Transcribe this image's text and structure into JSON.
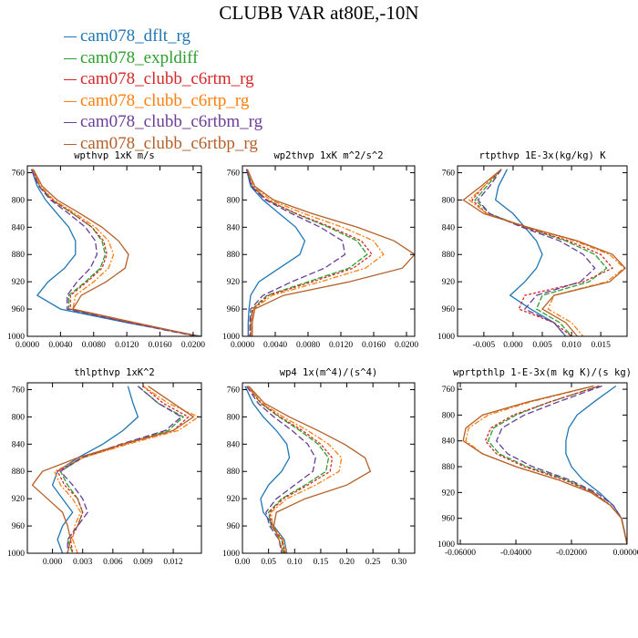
{
  "figure_title": "CLUBB VAR at80E,-10N",
  "legend": [
    {
      "label": "cam078_dflt_rg",
      "color": "#1f77b4"
    },
    {
      "label": "cam078_expldiff",
      "color": "#2ca02c"
    },
    {
      "label": "cam078_clubb_c6rtm_rg",
      "color": "#d62728"
    },
    {
      "label": "cam078_clubb_c6rtp_rg",
      "color": "#ff7f0e"
    },
    {
      "label": "cam078_clubb_c6rtbm_rg",
      "color": "#6a3d9a"
    },
    {
      "label": "cam078_clubb_c6rtbp_rg",
      "color": "#b5602a"
    }
  ],
  "chart_data": [
    {
      "type": "line",
      "title": "wpthvp  1xK m/s",
      "xlim": [
        0,
        0.021
      ],
      "ylim": [
        1000,
        750
      ],
      "xticks": [
        "0.0000",
        "0.0040",
        "0.0080",
        "0.0120",
        "0.0160",
        "0.0200"
      ],
      "xtick_values": [
        0,
        0.004,
        0.008,
        0.012,
        0.016,
        0.02
      ],
      "yticks": [
        760,
        800,
        840,
        880,
        920,
        960,
        1000
      ],
      "y": [
        755,
        780,
        800,
        820,
        840,
        860,
        880,
        900,
        920,
        940,
        960,
        980,
        1000
      ],
      "series": [
        {
          "name": "cam078_dflt_rg",
          "values": [
            0.0005,
            0.0012,
            0.0022,
            0.0036,
            0.005,
            0.0058,
            0.0058,
            0.0045,
            0.0025,
            0.0012,
            0.004,
            0.012,
            0.021
          ]
        },
        {
          "name": "cam078_expldiff",
          "values": [
            0.0006,
            0.0015,
            0.003,
            0.0055,
            0.0078,
            0.009,
            0.0094,
            0.0088,
            0.007,
            0.005,
            0.005,
            0.0125,
            0.0205
          ]
        },
        {
          "name": "cam078_clubb_c6rtm_rg",
          "values": [
            0.0006,
            0.0015,
            0.003,
            0.0055,
            0.0078,
            0.0092,
            0.0096,
            0.009,
            0.0072,
            0.0052,
            0.0052,
            0.0126,
            0.0205
          ]
        },
        {
          "name": "cam078_clubb_c6rtp_rg",
          "values": [
            0.0006,
            0.0016,
            0.0032,
            0.0058,
            0.0082,
            0.0098,
            0.0104,
            0.0098,
            0.008,
            0.0058,
            0.0055,
            0.0128,
            0.0206
          ]
        },
        {
          "name": "cam078_clubb_c6rtbm_rg",
          "values": [
            0.0005,
            0.0014,
            0.0028,
            0.005,
            0.007,
            0.0082,
            0.0084,
            0.0076,
            0.006,
            0.0048,
            0.0048,
            0.0122,
            0.0204
          ]
        },
        {
          "name": "cam078_clubb_c6rtbp_rg",
          "values": [
            0.0007,
            0.0018,
            0.0036,
            0.0064,
            0.009,
            0.011,
            0.0122,
            0.0118,
            0.0095,
            0.0065,
            0.0055,
            0.013,
            0.0207
          ]
        }
      ]
    },
    {
      "type": "line",
      "title": "wp2thvp  1xK m^2/s^2",
      "xlim": [
        0,
        0.021
      ],
      "ylim": [
        1000,
        750
      ],
      "xticks": [
        "0.0000",
        "0.0040",
        "0.0080",
        "0.0120",
        "0.0160",
        "0.0200"
      ],
      "xtick_values": [
        0,
        0.004,
        0.008,
        0.012,
        0.016,
        0.02
      ],
      "yticks": [
        760,
        800,
        840,
        880,
        920,
        960,
        1000
      ],
      "y": [
        755,
        780,
        800,
        820,
        840,
        860,
        880,
        900,
        920,
        940,
        960,
        980,
        1000
      ],
      "series": [
        {
          "name": "cam078_dflt_rg",
          "values": [
            0.0005,
            0.001,
            0.0025,
            0.0045,
            0.0065,
            0.0076,
            0.007,
            0.0045,
            0.002,
            0.001,
            0.0008,
            0.0007,
            0.0007
          ]
        },
        {
          "name": "cam078_expldiff",
          "values": [
            0.0005,
            0.0012,
            0.003,
            0.0065,
            0.0105,
            0.014,
            0.0152,
            0.013,
            0.008,
            0.003,
            0.0012,
            0.001,
            0.001
          ]
        },
        {
          "name": "cam078_clubb_c6rtm_rg",
          "values": [
            0.0005,
            0.0012,
            0.003,
            0.0066,
            0.0108,
            0.0145,
            0.0158,
            0.0135,
            0.0085,
            0.0032,
            0.0013,
            0.001,
            0.001
          ]
        },
        {
          "name": "cam078_clubb_c6rtp_rg",
          "values": [
            0.0006,
            0.0014,
            0.0034,
            0.0075,
            0.0122,
            0.016,
            0.0172,
            0.015,
            0.0095,
            0.0036,
            0.0014,
            0.0011,
            0.0011
          ]
        },
        {
          "name": "cam078_clubb_c6rtbm_rg",
          "values": [
            0.0005,
            0.0011,
            0.0028,
            0.006,
            0.0095,
            0.0122,
            0.0125,
            0.01,
            0.006,
            0.0025,
            0.001,
            0.0009,
            0.0009
          ]
        },
        {
          "name": "cam078_clubb_c6rtbp_rg",
          "values": [
            0.0006,
            0.0015,
            0.0038,
            0.0085,
            0.014,
            0.0185,
            0.021,
            0.0195,
            0.013,
            0.005,
            0.0015,
            0.0012,
            0.0012
          ]
        }
      ]
    },
    {
      "type": "line",
      "title": "rtpthvp  1E-3x(kg/kg) K",
      "xlim": [
        -0.0095,
        0.0195
      ],
      "ylim": [
        1000,
        750
      ],
      "xticks": [
        "-0.005",
        "0.000",
        "0.005",
        "0.010",
        "0.015"
      ],
      "xtick_values": [
        -0.005,
        0,
        0.005,
        0.01,
        0.015
      ],
      "yticks": [
        760,
        800,
        840,
        880,
        920,
        960,
        1000
      ],
      "y": [
        755,
        780,
        800,
        820,
        840,
        860,
        880,
        900,
        920,
        940,
        960,
        980,
        1000
      ],
      "series": [
        {
          "name": "cam078_dflt_rg",
          "values": [
            -0.001,
            -0.0025,
            -0.003,
            0.0,
            0.002,
            0.004,
            0.005,
            0.004,
            0.002,
            -0.0005,
            0.003,
            0.007,
            0.009
          ]
        },
        {
          "name": "cam078_expldiff",
          "values": [
            -0.002,
            -0.0045,
            -0.0065,
            -0.004,
            0.002,
            0.009,
            0.014,
            0.016,
            0.013,
            0.005,
            0.004,
            0.008,
            0.01
          ]
        },
        {
          "name": "cam078_clubb_c6rtm_rg",
          "values": [
            -0.002,
            -0.005,
            -0.007,
            -0.0045,
            0.002,
            0.0095,
            0.015,
            0.017,
            0.012,
            0.002,
            0.001,
            0.007,
            0.01
          ]
        },
        {
          "name": "cam078_clubb_c6rtp_rg",
          "values": [
            -0.002,
            -0.005,
            -0.0075,
            -0.0045,
            0.0025,
            0.0105,
            0.0165,
            0.019,
            0.016,
            0.007,
            0.006,
            0.01,
            0.012
          ]
        },
        {
          "name": "cam078_clubb_c6rtbm_rg",
          "values": [
            -0.002,
            -0.004,
            -0.006,
            -0.004,
            0.0015,
            0.008,
            0.012,
            0.014,
            0.0115,
            0.004,
            0.002,
            0.007,
            0.009
          ]
        },
        {
          "name": "cam078_clubb_c6rtbp_rg",
          "values": [
            -0.002,
            -0.0055,
            -0.0085,
            -0.005,
            0.0025,
            0.011,
            0.017,
            0.0192,
            0.0165,
            0.007,
            0.005,
            0.009,
            0.011
          ]
        }
      ]
    },
    {
      "type": "line",
      "title": "thlpthvp  1xK^2",
      "xlim": [
        -0.0025,
        0.0148
      ],
      "ylim": [
        1000,
        750
      ],
      "xticks": [
        "0.000",
        "0.003",
        "0.006",
        "0.009",
        "0.012"
      ],
      "xtick_values": [
        0,
        0.003,
        0.006,
        0.009,
        0.012
      ],
      "yticks": [
        760,
        800,
        840,
        880,
        920,
        960,
        1000
      ],
      "y": [
        755,
        780,
        800,
        820,
        840,
        860,
        880,
        900,
        920,
        940,
        960,
        980,
        1000
      ],
      "series": [
        {
          "name": "cam078_dflt_rg",
          "values": [
            0.0075,
            0.008,
            0.0085,
            0.007,
            0.005,
            0.0025,
            0.0005,
            0.0,
            0.001,
            0.002,
            0.001,
            0.0005,
            0.001
          ]
        },
        {
          "name": "cam078_expldiff",
          "values": [
            0.0085,
            0.0105,
            0.013,
            0.0115,
            0.007,
            0.003,
            0.0008,
            0.0015,
            0.0025,
            0.003,
            0.0025,
            0.0015,
            0.002
          ]
        },
        {
          "name": "cam078_clubb_c6rtm_rg",
          "values": [
            0.009,
            0.011,
            0.0135,
            0.012,
            0.0072,
            0.003,
            0.0005,
            0.0012,
            0.0025,
            0.003,
            0.0025,
            0.0018,
            0.002
          ]
        },
        {
          "name": "cam078_clubb_c6rtp_rg",
          "values": [
            0.009,
            0.0115,
            0.0145,
            0.0125,
            0.0075,
            0.003,
            0.0002,
            0.0008,
            0.002,
            0.0028,
            0.0022,
            0.002,
            0.0025
          ]
        },
        {
          "name": "cam078_clubb_c6rtbm_rg",
          "values": [
            0.0085,
            0.0105,
            0.0128,
            0.0112,
            0.0068,
            0.0028,
            0.0008,
            0.002,
            0.003,
            0.0035,
            0.0025,
            0.0015,
            0.0015
          ]
        },
        {
          "name": "cam078_clubb_c6rtbp_rg",
          "values": [
            0.0095,
            0.012,
            0.014,
            0.012,
            0.007,
            0.0025,
            -0.001,
            -0.002,
            -0.0005,
            0.001,
            0.0015,
            0.0018,
            0.0015
          ]
        }
      ]
    },
    {
      "type": "line",
      "title": "wp4  1x(m^4)/(s^4)",
      "xlim": [
        0,
        0.33
      ],
      "ylim": [
        1000,
        750
      ],
      "xticks": [
        "0.00",
        "0.05",
        "0.10",
        "0.15",
        "0.20",
        "0.25",
        "0.30"
      ],
      "xtick_values": [
        0,
        0.05,
        0.1,
        0.15,
        0.2,
        0.25,
        0.3
      ],
      "yticks": [
        760,
        800,
        840,
        880,
        920,
        960,
        1000
      ],
      "y": [
        755,
        780,
        800,
        820,
        840,
        860,
        880,
        900,
        920,
        940,
        960,
        980,
        1000
      ],
      "series": [
        {
          "name": "cam078_dflt_rg",
          "values": [
            0.005,
            0.02,
            0.04,
            0.065,
            0.085,
            0.09,
            0.075,
            0.05,
            0.035,
            0.04,
            0.06,
            0.08,
            0.085
          ]
        },
        {
          "name": "cam078_expldiff",
          "values": [
            0.01,
            0.035,
            0.07,
            0.11,
            0.145,
            0.165,
            0.16,
            0.12,
            0.075,
            0.05,
            0.055,
            0.075,
            0.08
          ]
        },
        {
          "name": "cam078_clubb_c6rtm_rg",
          "values": [
            0.01,
            0.036,
            0.072,
            0.115,
            0.15,
            0.172,
            0.168,
            0.125,
            0.078,
            0.052,
            0.056,
            0.076,
            0.082
          ]
        },
        {
          "name": "cam078_clubb_c6rtp_rg",
          "values": [
            0.01,
            0.038,
            0.078,
            0.125,
            0.165,
            0.19,
            0.185,
            0.14,
            0.085,
            0.055,
            0.058,
            0.078,
            0.084
          ]
        },
        {
          "name": "cam078_clubb_c6rtbm_rg",
          "values": [
            0.008,
            0.03,
            0.06,
            0.095,
            0.125,
            0.14,
            0.135,
            0.1,
            0.065,
            0.045,
            0.052,
            0.07,
            0.075
          ]
        },
        {
          "name": "cam078_clubb_c6rtbp_rg",
          "values": [
            0.012,
            0.042,
            0.09,
            0.145,
            0.195,
            0.235,
            0.245,
            0.2,
            0.12,
            0.065,
            0.06,
            0.07,
            0.078
          ]
        }
      ]
    },
    {
      "type": "line",
      "title": "wprtpthlp  1-E-3x(m kg K)/(s kg)",
      "xlim": [
        -0.061,
        0.0
      ],
      "ylim": [
        1000,
        750
      ],
      "xticks": [
        "-0.06000",
        "-0.04000",
        "-0.02000",
        "0.00000"
      ],
      "xtick_values": [
        -0.06,
        -0.04,
        -0.02,
        0.0
      ],
      "yticks": [
        760,
        800,
        840,
        880,
        920,
        960,
        1000
      ],
      "y": [
        755,
        780,
        800,
        820,
        840,
        860,
        880,
        900,
        920,
        940,
        960,
        980,
        1000
      ],
      "series": [
        {
          "name": "cam078_dflt_rg",
          "values": [
            -0.004,
            -0.012,
            -0.018,
            -0.021,
            -0.022,
            -0.022,
            -0.02,
            -0.016,
            -0.01,
            -0.005,
            -0.002,
            -0.001,
            0.0
          ]
        },
        {
          "name": "cam078_expldiff",
          "values": [
            -0.01,
            -0.028,
            -0.04,
            -0.048,
            -0.05,
            -0.046,
            -0.036,
            -0.022,
            -0.012,
            -0.006,
            -0.002,
            -0.001,
            0.0
          ]
        },
        {
          "name": "cam078_clubb_c6rtm_rg",
          "values": [
            -0.01,
            -0.028,
            -0.041,
            -0.049,
            -0.051,
            -0.047,
            -0.037,
            -0.023,
            -0.012,
            -0.006,
            -0.002,
            -0.001,
            0.0
          ]
        },
        {
          "name": "cam078_clubb_c6rtp_rg",
          "values": [
            -0.012,
            -0.035,
            -0.05,
            -0.057,
            -0.058,
            -0.052,
            -0.04,
            -0.025,
            -0.013,
            -0.006,
            -0.002,
            -0.001,
            0.0
          ]
        },
        {
          "name": "cam078_clubb_c6rtbm_rg",
          "values": [
            -0.009,
            -0.025,
            -0.037,
            -0.045,
            -0.047,
            -0.043,
            -0.034,
            -0.021,
            -0.011,
            -0.005,
            -0.002,
            -0.001,
            0.0
          ]
        },
        {
          "name": "cam078_clubb_c6rtbp_rg",
          "values": [
            -0.012,
            -0.036,
            -0.052,
            -0.058,
            -0.059,
            -0.052,
            -0.04,
            -0.025,
            -0.013,
            -0.006,
            -0.002,
            -0.001,
            0.0
          ]
        }
      ]
    }
  ]
}
